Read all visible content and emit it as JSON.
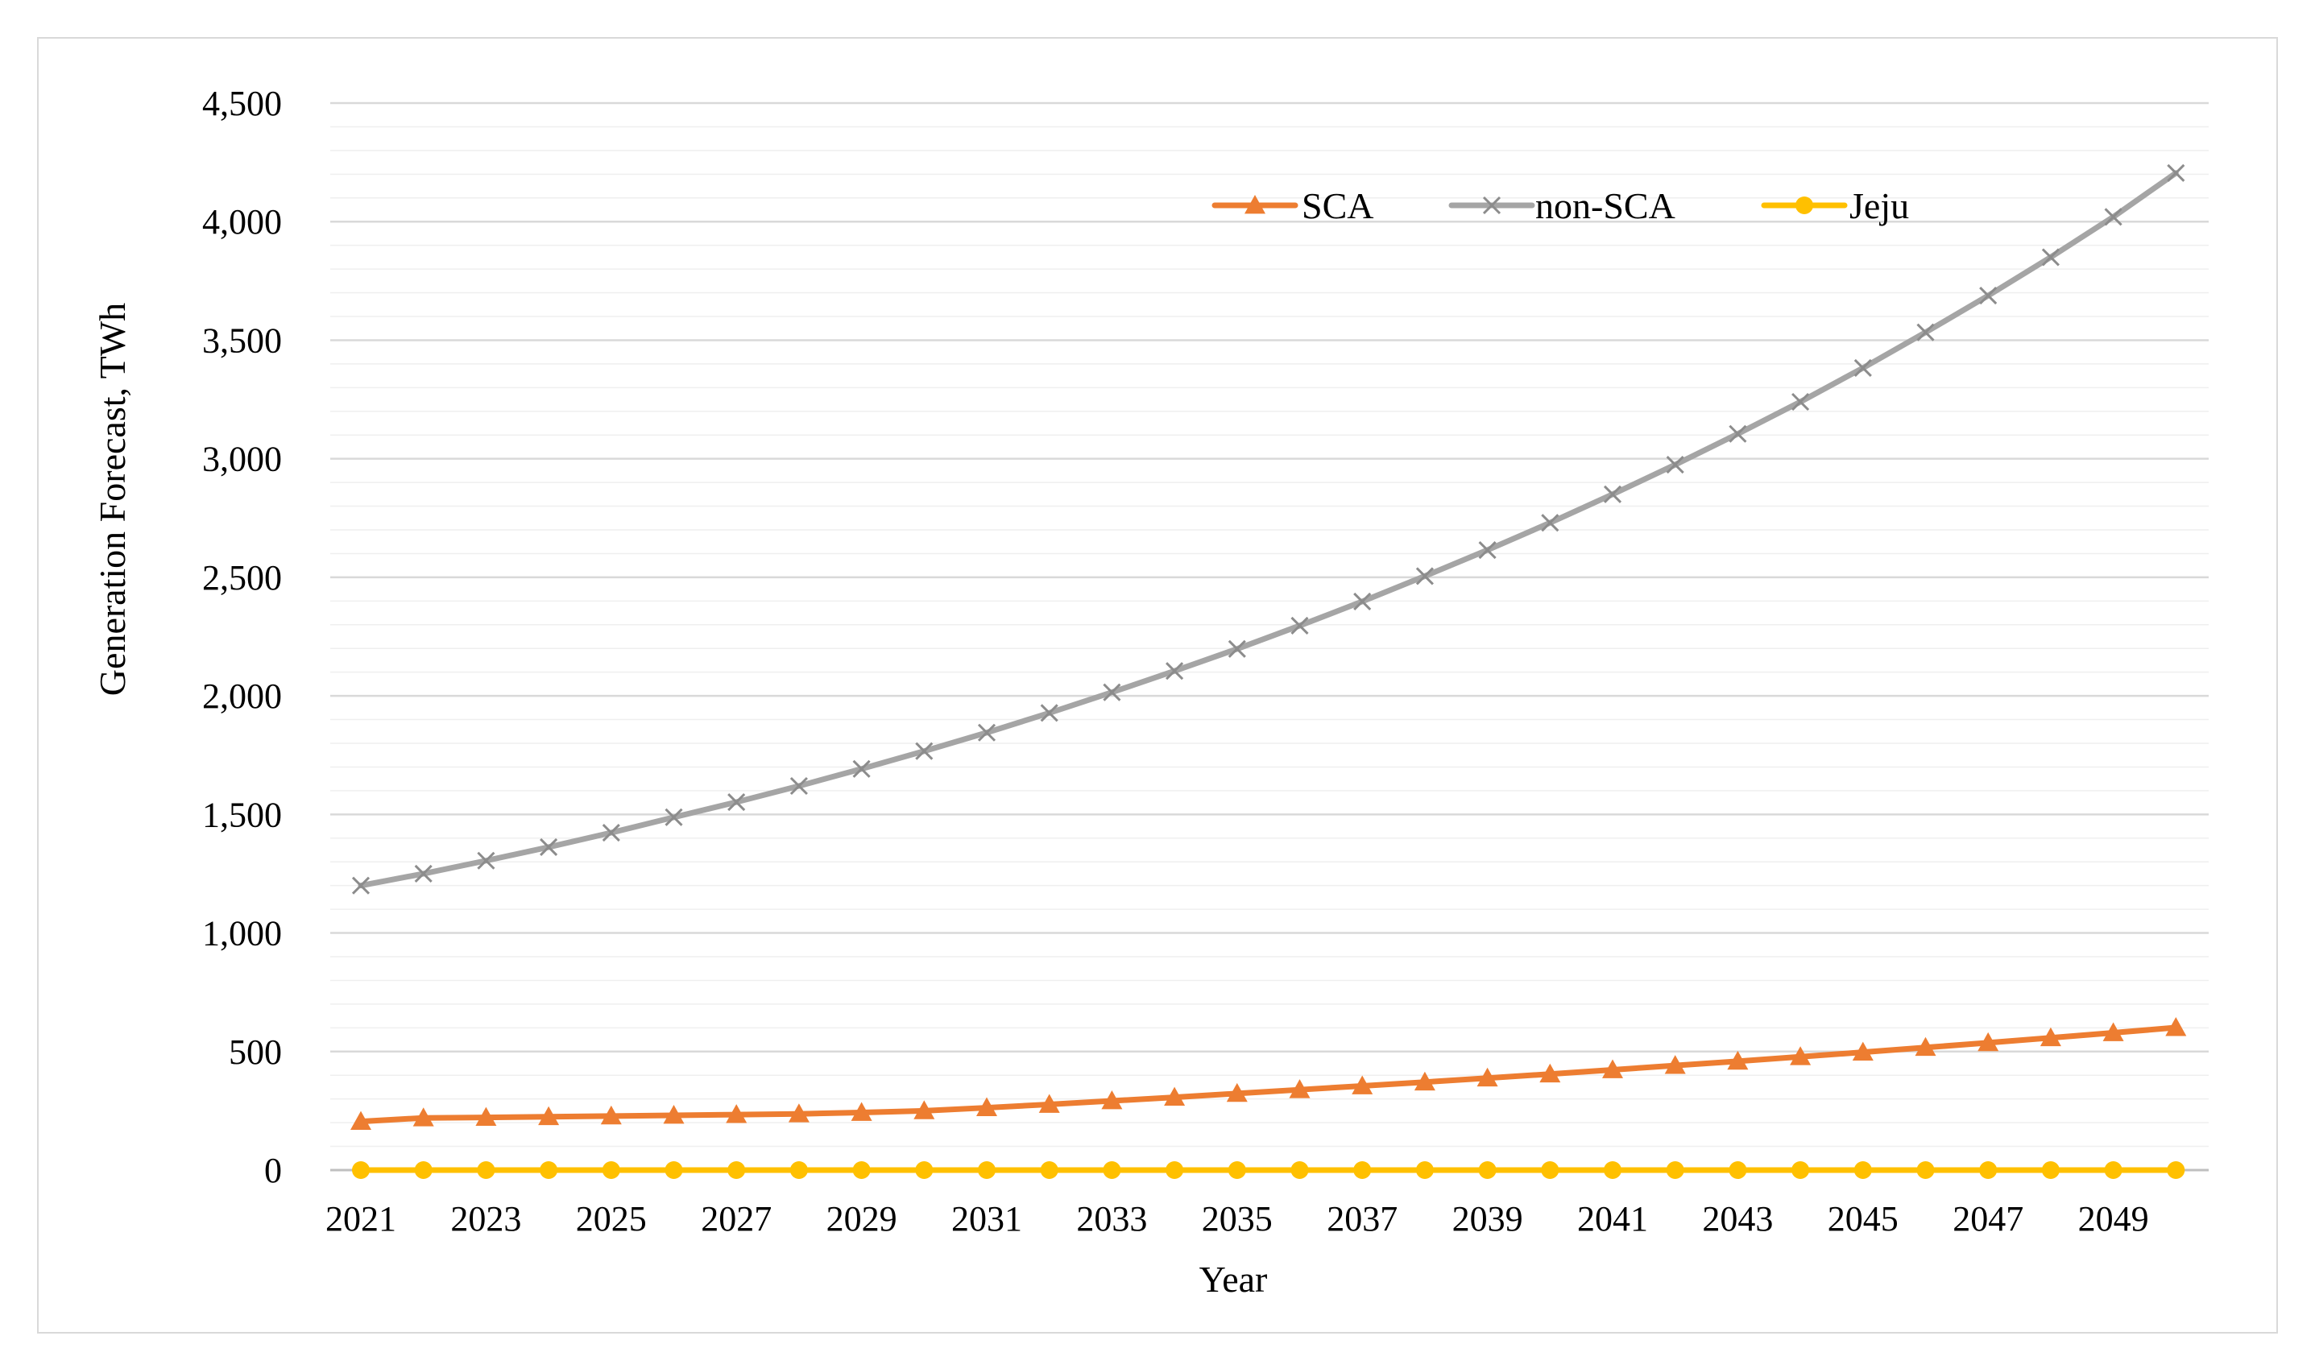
{
  "chart_data": {
    "type": "line",
    "title": "",
    "xlabel": "Year",
    "ylabel": "Generation Forecast, TWh",
    "ylim": [
      0,
      4500
    ],
    "ytick_step": 500,
    "yminor_step": 100,
    "grid": true,
    "legend_position": "top-center",
    "x": [
      2021,
      2022,
      2023,
      2024,
      2025,
      2026,
      2027,
      2028,
      2029,
      2030,
      2031,
      2032,
      2033,
      2034,
      2035,
      2036,
      2037,
      2038,
      2039,
      2040,
      2041,
      2042,
      2043,
      2044,
      2045,
      2046,
      2047,
      2048,
      2049,
      2050
    ],
    "x_tick_labels": [
      "2021",
      "2023",
      "2025",
      "2027",
      "2029",
      "2031",
      "2033",
      "2035",
      "2037",
      "2039",
      "2041",
      "2043",
      "2045",
      "2047",
      "2049"
    ],
    "y_tick_labels": [
      "0",
      "500",
      "1,000",
      "1,500",
      "2,000",
      "2,500",
      "3,000",
      "3,500",
      "4,000",
      "4,500"
    ],
    "series": [
      {
        "name": "SCA",
        "color": "#ed7d31",
        "marker": "triangle",
        "values": [
          205,
          220,
          222,
          225,
          228,
          231,
          234,
          237,
          243,
          250,
          263,
          277,
          292,
          307,
          323,
          339,
          355,
          371,
          388,
          405,
          423,
          441,
          459,
          478,
          497,
          517,
          537,
          558,
          579,
          601
        ]
      },
      {
        "name": "non-SCA",
        "color": "#a5a5a5",
        "marker": "x",
        "values": [
          1200,
          1250,
          1305,
          1362,
          1423,
          1488,
          1552,
          1620,
          1692,
          1767,
          1845,
          1928,
          2015,
          2105,
          2198,
          2296,
          2398,
          2505,
          2615,
          2730,
          2850,
          2975,
          3105,
          3240,
          3383,
          3533,
          3688,
          3850,
          4020,
          4205
        ]
      },
      {
        "name": "Jeju",
        "color": "#ffc000",
        "marker": "circle",
        "values": [
          0,
          0,
          0,
          0,
          0,
          0,
          0,
          0,
          0,
          0,
          0,
          0,
          0,
          0,
          0,
          0,
          0,
          0,
          0,
          0,
          0,
          0,
          0,
          0,
          0,
          0,
          0,
          0,
          0,
          0
        ]
      }
    ]
  }
}
